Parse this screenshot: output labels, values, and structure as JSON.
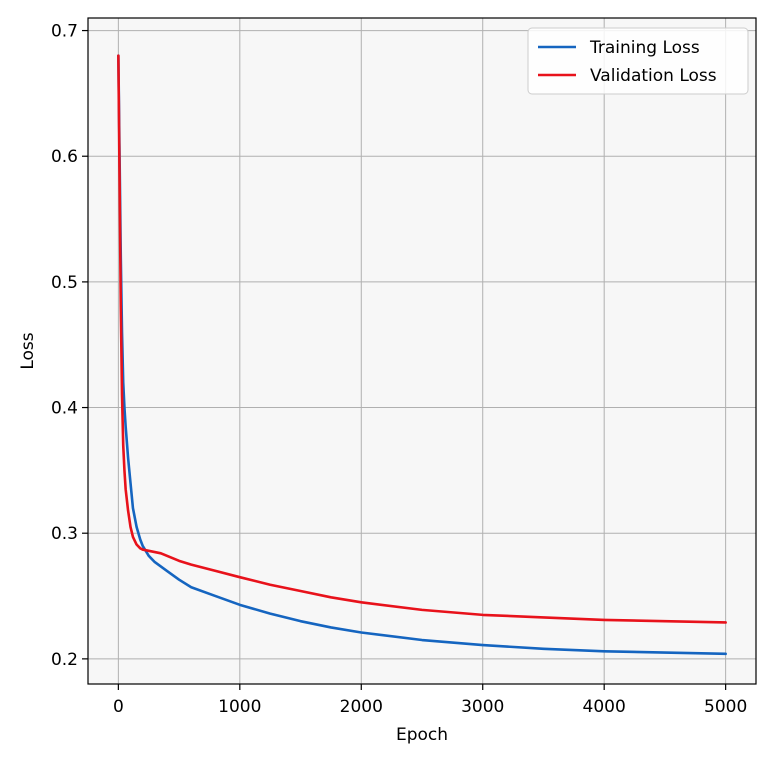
{
  "chart_data": {
    "type": "line",
    "title": "",
    "xlabel": "Epoch",
    "ylabel": "Loss",
    "xlim": [
      -250,
      5250
    ],
    "ylim": [
      0.18,
      0.71
    ],
    "x_ticks": [
      0,
      1000,
      2000,
      3000,
      4000,
      5000
    ],
    "y_ticks": [
      0.2,
      0.3,
      0.4,
      0.5,
      0.6,
      0.7
    ],
    "grid": true,
    "legend_position": "upper right",
    "background_color": "#f7f7f7",
    "series": [
      {
        "name": "Training Loss",
        "color": "#1565c0",
        "x": [
          0,
          10,
          20,
          30,
          40,
          50,
          60,
          80,
          100,
          120,
          150,
          180,
          200,
          250,
          300,
          400,
          500,
          600,
          800,
          1000,
          1250,
          1500,
          1750,
          2000,
          2500,
          3000,
          3500,
          4000,
          4500,
          5000
        ],
        "y": [
          0.68,
          0.6,
          0.52,
          0.46,
          0.42,
          0.4,
          0.385,
          0.36,
          0.34,
          0.32,
          0.305,
          0.295,
          0.29,
          0.282,
          0.277,
          0.27,
          0.263,
          0.257,
          0.25,
          0.243,
          0.236,
          0.23,
          0.225,
          0.221,
          0.215,
          0.211,
          0.208,
          0.206,
          0.205,
          0.204
        ]
      },
      {
        "name": "Validation Loss",
        "color": "#e8121b",
        "x": [
          0,
          10,
          20,
          30,
          40,
          50,
          60,
          80,
          100,
          120,
          150,
          180,
          200,
          250,
          300,
          350,
          400,
          500,
          600,
          800,
          1000,
          1250,
          1500,
          1750,
          2000,
          2500,
          3000,
          3500,
          4000,
          4500,
          5000
        ],
        "y": [
          0.68,
          0.58,
          0.48,
          0.41,
          0.37,
          0.35,
          0.335,
          0.318,
          0.305,
          0.297,
          0.291,
          0.288,
          0.287,
          0.286,
          0.285,
          0.284,
          0.282,
          0.278,
          0.275,
          0.27,
          0.265,
          0.259,
          0.254,
          0.249,
          0.245,
          0.239,
          0.235,
          0.233,
          0.231,
          0.23,
          0.229
        ]
      }
    ]
  }
}
